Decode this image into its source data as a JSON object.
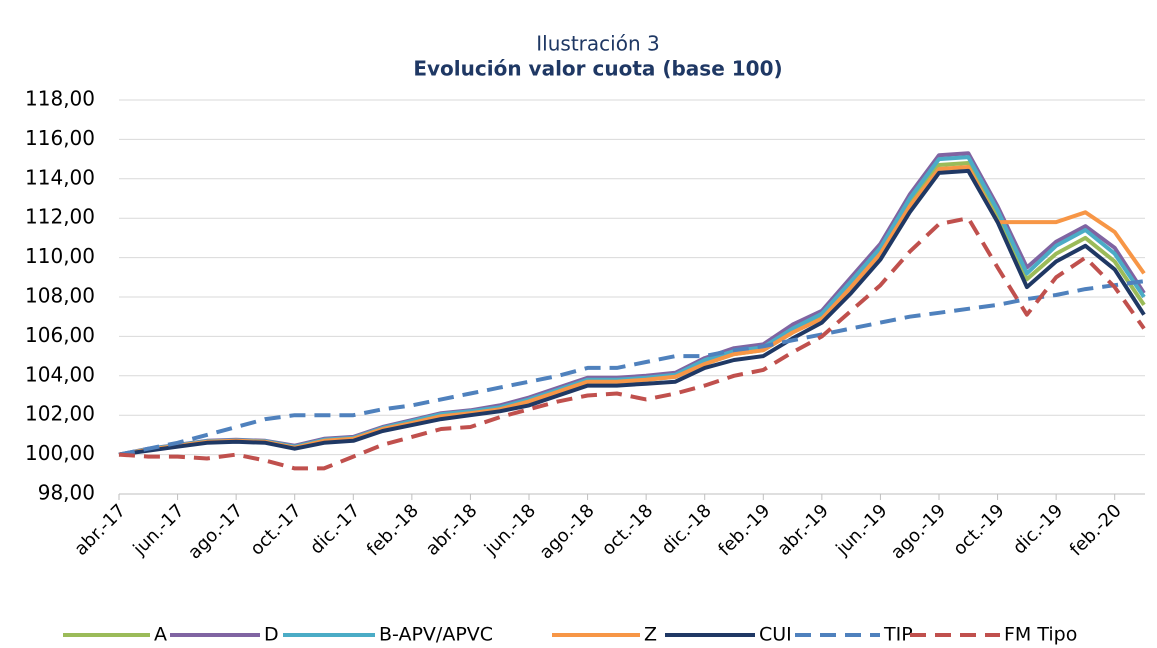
{
  "chart_data": {
    "type": "line",
    "caption": "Ilustración 3",
    "title": "Evolución valor cuota (base 100)",
    "categories": [
      "abr.-17",
      null,
      "jun.-17",
      null,
      "ago.-17",
      null,
      "oct.-17",
      null,
      "dic.-17",
      null,
      "feb.-18",
      null,
      "abr.-18",
      null,
      "jun.-18",
      null,
      "ago.-18",
      null,
      "oct.-18",
      null,
      "dic.-18",
      null,
      "feb.-19",
      null,
      "abr.-19",
      null,
      "jun.-19",
      null,
      "ago.-19",
      null,
      "oct.-19",
      null,
      "dic.-19",
      null,
      "feb.-20",
      null
    ],
    "ylim": [
      98,
      118
    ],
    "yticks": [
      {
        "value": 98,
        "label": "98,00"
      },
      {
        "value": 100,
        "label": "100,00"
      },
      {
        "value": 102,
        "label": "102,00"
      },
      {
        "value": 104,
        "label": "104,00"
      },
      {
        "value": 106,
        "label": "106,00"
      },
      {
        "value": 108,
        "label": "108,00"
      },
      {
        "value": 110,
        "label": "110,00"
      },
      {
        "value": 112,
        "label": "112,00"
      },
      {
        "value": 114,
        "label": "114,00"
      },
      {
        "value": 116,
        "label": "116,00"
      },
      {
        "value": 118,
        "label": "118,00"
      }
    ],
    "grid": true,
    "legend": "bottom",
    "series": [
      {
        "name": "A",
        "color": "#9bbb59",
        "dashed": false,
        "values": [
          100,
          100.25,
          100.45,
          100.65,
          100.7,
          100.65,
          100.35,
          100.7,
          100.8,
          101.3,
          101.6,
          101.95,
          102.1,
          102.3,
          102.7,
          103.2,
          103.7,
          103.7,
          103.8,
          103.95,
          104.6,
          105.1,
          105.3,
          106.2,
          107.0,
          108.6,
          110.3,
          112.8,
          114.7,
          114.8,
          112.2,
          108.9,
          110.2,
          111.0,
          109.8,
          107.6
        ]
      },
      {
        "name": "D",
        "color": "#8064a2",
        "dashed": false,
        "values": [
          100,
          100.3,
          100.5,
          100.7,
          100.75,
          100.7,
          100.45,
          100.8,
          100.9,
          101.4,
          101.75,
          102.1,
          102.25,
          102.5,
          102.9,
          103.4,
          103.9,
          103.9,
          104.0,
          104.15,
          104.9,
          105.4,
          105.6,
          106.6,
          107.3,
          109.0,
          110.7,
          113.2,
          115.2,
          115.3,
          112.6,
          109.5,
          110.8,
          111.6,
          110.5,
          108.2
        ]
      },
      {
        "name": "B-APV/APVC",
        "color": "#4bacc6",
        "dashed": false,
        "values": [
          100,
          100.28,
          100.48,
          100.68,
          100.72,
          100.68,
          100.4,
          100.75,
          100.85,
          101.35,
          101.7,
          102.05,
          102.2,
          102.4,
          102.8,
          103.3,
          103.8,
          103.8,
          103.9,
          104.05,
          104.8,
          105.25,
          105.45,
          106.4,
          107.15,
          108.8,
          110.5,
          113.0,
          115.0,
          115.1,
          112.4,
          109.2,
          110.6,
          111.4,
          110.2,
          108.0
        ]
      },
      {
        "name": "Z",
        "color": "#f79646",
        "dashed": false,
        "values": [
          100,
          100.25,
          100.45,
          100.65,
          100.7,
          100.65,
          100.35,
          100.7,
          100.8,
          101.3,
          101.6,
          101.95,
          102.1,
          102.3,
          102.7,
          103.2,
          103.7,
          103.7,
          103.8,
          103.95,
          104.6,
          105.1,
          105.3,
          106.2,
          106.9,
          108.5,
          110.2,
          112.6,
          114.5,
          114.6,
          111.8,
          111.8,
          111.8,
          112.3,
          111.3,
          109.2
        ]
      },
      {
        "name": "CUI",
        "color": "#1f3864",
        "dashed": false,
        "values": [
          100,
          100.2,
          100.4,
          100.6,
          100.65,
          100.6,
          100.3,
          100.6,
          100.7,
          101.2,
          101.5,
          101.8,
          102.0,
          102.2,
          102.5,
          103.0,
          103.5,
          103.5,
          103.6,
          103.7,
          104.4,
          104.8,
          105.0,
          105.9,
          106.7,
          108.2,
          109.9,
          112.3,
          114.3,
          114.4,
          111.8,
          108.5,
          109.8,
          110.6,
          109.4,
          107.1
        ]
      },
      {
        "name": "TIP",
        "color": "#4f81bd",
        "dashed": true,
        "values": [
          100,
          100.3,
          100.6,
          101.0,
          101.4,
          101.8,
          102.0,
          102.0,
          102.0,
          102.3,
          102.5,
          102.8,
          103.1,
          103.4,
          103.7,
          104.0,
          104.4,
          104.4,
          104.7,
          105.0,
          105.0,
          105.3,
          105.5,
          105.8,
          106.1,
          106.4,
          106.7,
          107.0,
          107.2,
          107.4,
          107.6,
          107.9,
          108.1,
          108.4,
          108.6,
          108.8
        ]
      },
      {
        "name": "FM Tipo",
        "color": "#c0504d",
        "dashed": true,
        "values": [
          100,
          99.9,
          99.9,
          99.8,
          100.0,
          99.7,
          99.3,
          99.3,
          99.9,
          100.5,
          100.9,
          101.3,
          101.4,
          101.9,
          102.3,
          102.7,
          103.0,
          103.1,
          102.8,
          103.1,
          103.5,
          104.0,
          104.3,
          105.2,
          106.0,
          107.3,
          108.6,
          110.3,
          111.7,
          112.0,
          109.5,
          107.1,
          109.0,
          110.0,
          108.5,
          106.4
        ]
      }
    ]
  }
}
